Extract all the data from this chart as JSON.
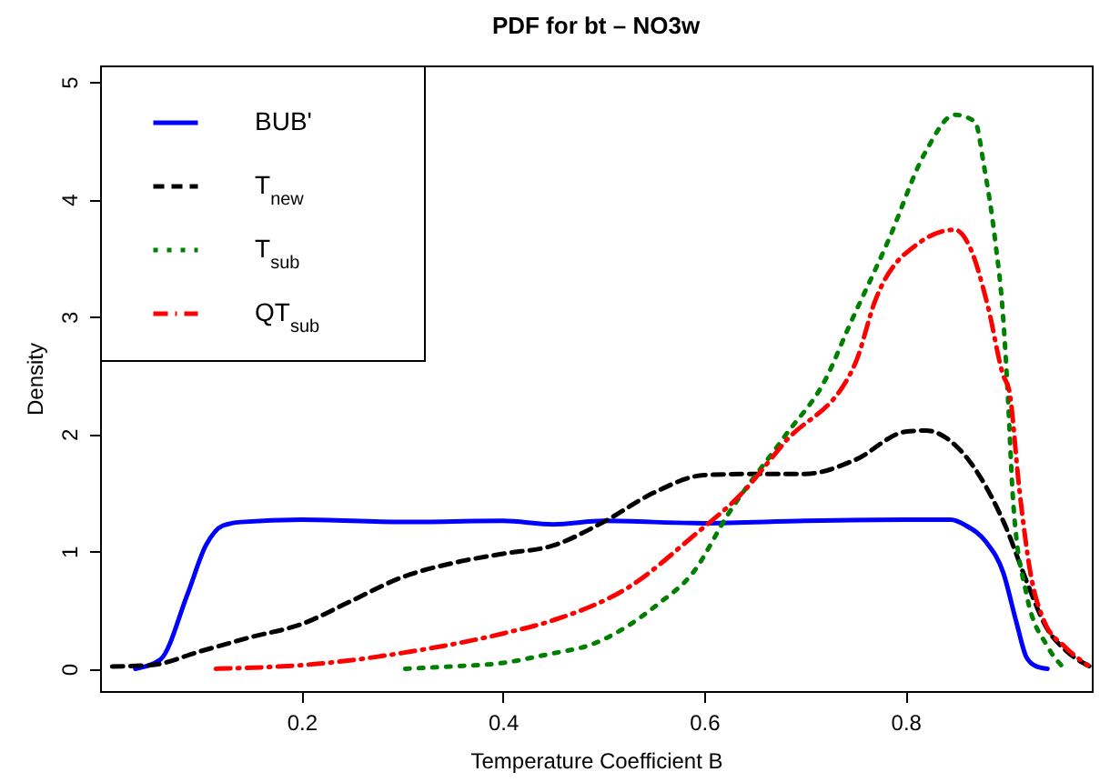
{
  "chart_data": {
    "type": "line",
    "title": "PDF for bt – NO3w",
    "xlabel": "Temperature Coefficient B",
    "ylabel": "Density",
    "xlim": [
      0.0,
      0.985
    ],
    "ylim": [
      -0.19,
      5.14
    ],
    "xticks": [
      0.2,
      0.4,
      0.6,
      0.8
    ],
    "yticks": [
      0,
      1,
      2,
      3,
      4,
      5
    ],
    "grid": false,
    "legend": "top left",
    "series": [
      {
        "name": "BUB'",
        "color": "#0000ff",
        "line_style": "solid",
        "x": [
          0.035,
          0.06,
          0.087,
          0.105,
          0.122,
          0.14,
          0.2,
          0.3,
          0.4,
          0.45,
          0.5,
          0.6,
          0.7,
          0.8,
          0.845,
          0.86,
          0.88,
          0.897,
          0.91,
          0.92,
          0.93,
          0.941
        ],
        "values": [
          0,
          0.08,
          0.64,
          1.05,
          1.22,
          1.25,
          1.27,
          1.25,
          1.26,
          1.23,
          1.26,
          1.24,
          1.26,
          1.27,
          1.27,
          1.22,
          1.08,
          0.82,
          0.4,
          0.1,
          0.02,
          0
        ]
      },
      {
        "name": "T$_{new}$",
        "color": "#000000",
        "line_style": "dashed",
        "x": [
          0.012,
          0.05,
          0.1,
          0.15,
          0.2,
          0.25,
          0.3,
          0.35,
          0.4,
          0.45,
          0.5,
          0.55,
          0.6,
          0.65,
          0.7,
          0.75,
          0.8,
          0.82,
          0.85,
          0.88,
          0.9,
          0.92,
          0.94,
          0.96,
          0.983
        ],
        "values": [
          0.02,
          0.03,
          0.15,
          0.27,
          0.38,
          0.58,
          0.78,
          0.9,
          0.98,
          1.05,
          1.25,
          1.5,
          1.65,
          1.66,
          1.66,
          1.78,
          2.02,
          2.03,
          1.9,
          1.55,
          1.2,
          0.75,
          0.35,
          0.15,
          0.02
        ]
      },
      {
        "name": "T$_{sub}$",
        "color": "#008000",
        "line_style": "dotted",
        "x": [
          0.303,
          0.35,
          0.4,
          0.443,
          0.492,
          0.554,
          0.589,
          0.624,
          0.68,
          0.722,
          0.743,
          0.783,
          0.819,
          0.849,
          0.869,
          0.878,
          0.889,
          0.897,
          0.901,
          0.907,
          0.92,
          0.941,
          0.958
        ],
        "values": [
          0,
          0.02,
          0.05,
          0.12,
          0.22,
          0.55,
          0.82,
          1.32,
          1.98,
          2.49,
          2.9,
          3.65,
          4.39,
          4.72,
          4.66,
          4.28,
          3.65,
          2.99,
          2.43,
          1.41,
          0.64,
          0.19,
          0
        ]
      },
      {
        "name": "QT$_{sub}$",
        "color": "#ff0000",
        "line_style": "dashdot",
        "x": [
          0.115,
          0.213,
          0.318,
          0.4,
          0.456,
          0.526,
          0.589,
          0.638,
          0.68,
          0.75,
          0.77,
          0.812,
          0.849,
          0.864,
          0.882,
          0.897,
          0.903,
          0.913,
          0.924,
          0.938,
          0.958,
          0.981
        ],
        "values": [
          0,
          0.04,
          0.16,
          0.3,
          0.43,
          0.7,
          1.13,
          1.5,
          1.93,
          2.6,
          3.14,
          3.62,
          3.74,
          3.59,
          3.08,
          2.5,
          2.37,
          1.53,
          0.82,
          0.4,
          0.19,
          0.03
        ]
      }
    ]
  }
}
